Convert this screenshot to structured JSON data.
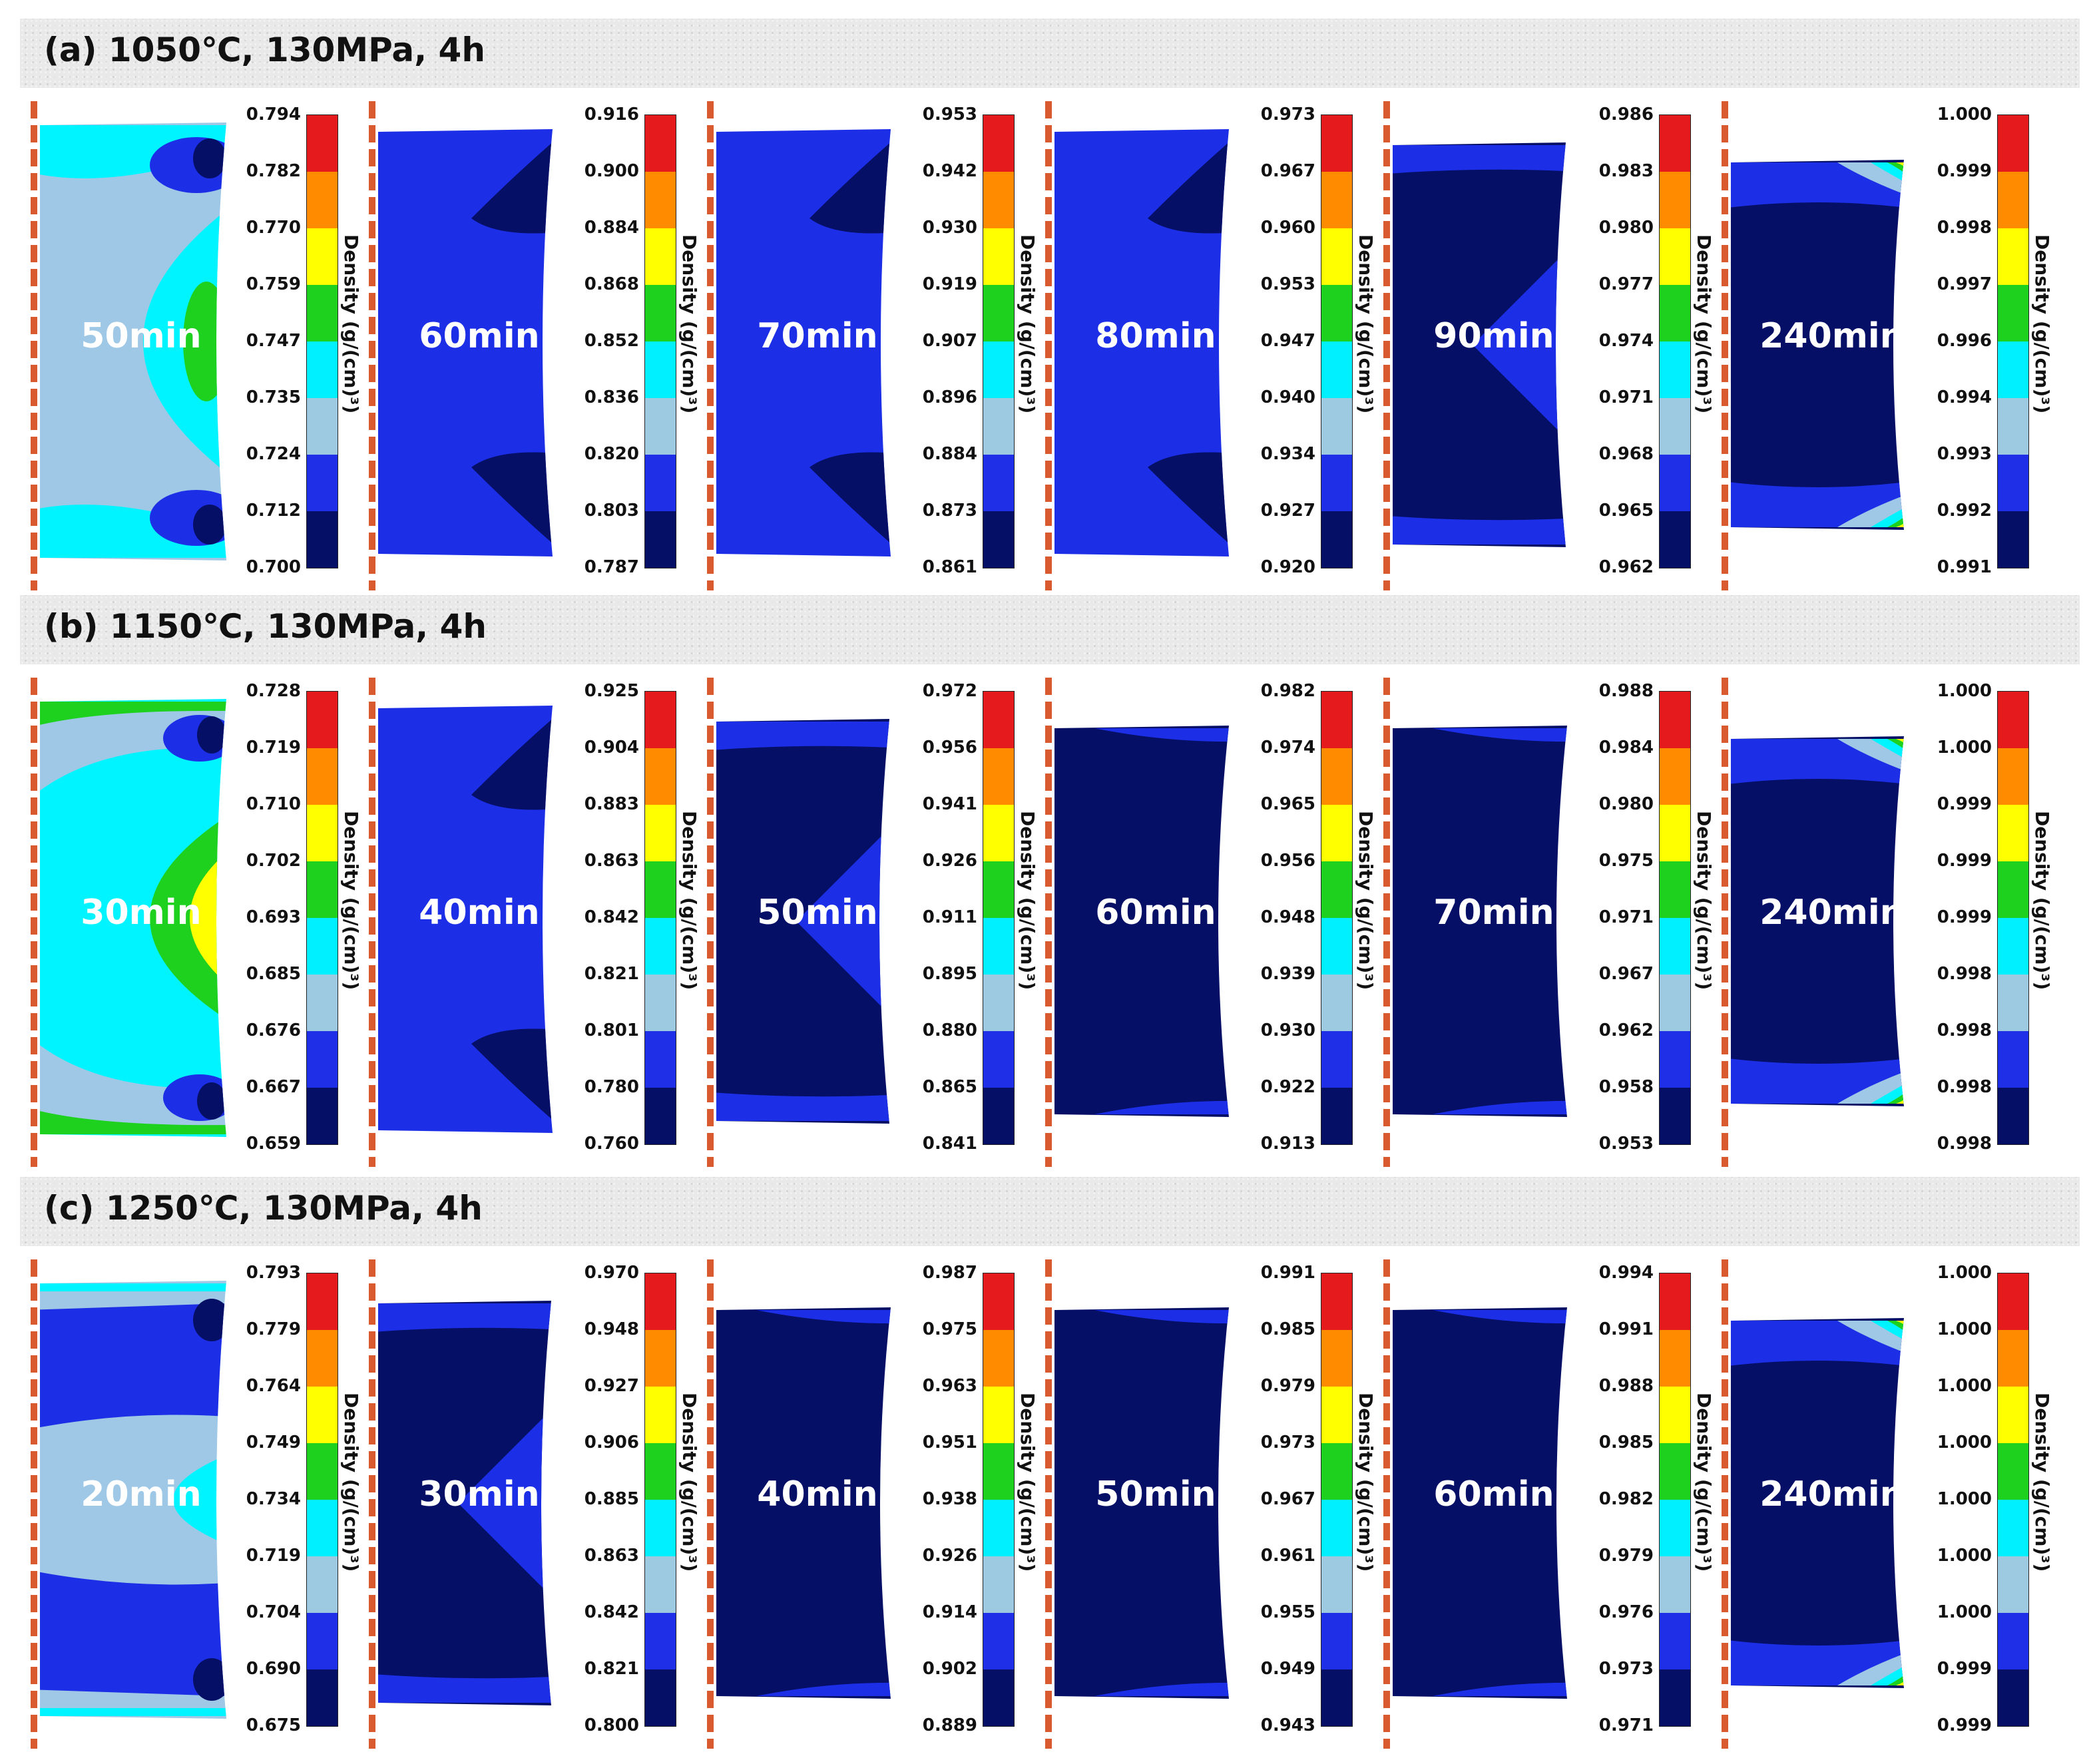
{
  "colorbar": {
    "colors": [
      "#e41a1c",
      "#ff8c00",
      "#ffff00",
      "#1fd11f",
      "#00f0ff",
      "#9ecae1",
      "#1f2fe8",
      "#050f66"
    ],
    "fill_colors": {
      "lightblue": "#9ec8e6",
      "cyan": "#00f4ff",
      "green": "#1fd11f",
      "yellow": "#ffff00",
      "blue": "#1c2ee6",
      "navy": "#050f66"
    },
    "label": "Density (g/(cm)³)"
  },
  "rows": [
    {
      "title": "(a) 1050℃, 130MPa, 4h",
      "panels": [
        {
          "time": "50min",
          "ticks": [
            "0.794",
            "0.782",
            "0.770",
            "0.759",
            "0.747",
            "0.735",
            "0.724",
            "0.712",
            "0.700"
          ],
          "style": "a"
        },
        {
          "time": "60min",
          "ticks": [
            "0.916",
            "0.900",
            "0.884",
            "0.868",
            "0.852",
            "0.836",
            "0.820",
            "0.803",
            "0.787"
          ],
          "style": "b"
        },
        {
          "time": "70min",
          "ticks": [
            "0.953",
            "0.942",
            "0.930",
            "0.919",
            "0.907",
            "0.896",
            "0.884",
            "0.873",
            "0.861"
          ],
          "style": "b"
        },
        {
          "time": "80min",
          "ticks": [
            "0.973",
            "0.967",
            "0.960",
            "0.953",
            "0.947",
            "0.940",
            "0.934",
            "0.927",
            "0.920"
          ],
          "style": "b"
        },
        {
          "time": "90min",
          "ticks": [
            "0.986",
            "0.983",
            "0.980",
            "0.977",
            "0.974",
            "0.971",
            "0.968",
            "0.965",
            "0.962"
          ],
          "style": "c"
        },
        {
          "time": "240min",
          "ticks": [
            "1.000",
            "0.999",
            "0.998",
            "0.997",
            "0.996",
            "0.994",
            "0.993",
            "0.992",
            "0.991"
          ],
          "style": "e"
        }
      ]
    },
    {
      "title": "(b) 1150℃, 130MPa, 4h",
      "panels": [
        {
          "time": "30min",
          "ticks": [
            "0.728",
            "0.719",
            "0.710",
            "0.702",
            "0.693",
            "0.685",
            "0.676",
            "0.667",
            "0.659"
          ],
          "style": "a2"
        },
        {
          "time": "40min",
          "ticks": [
            "0.925",
            "0.904",
            "0.883",
            "0.863",
            "0.842",
            "0.821",
            "0.801",
            "0.780",
            "0.760"
          ],
          "style": "b"
        },
        {
          "time": "50min",
          "ticks": [
            "0.972",
            "0.956",
            "0.941",
            "0.926",
            "0.911",
            "0.895",
            "0.880",
            "0.865",
            "0.841"
          ],
          "style": "c"
        },
        {
          "time": "60min",
          "ticks": [
            "0.982",
            "0.974",
            "0.965",
            "0.956",
            "0.948",
            "0.939",
            "0.930",
            "0.922",
            "0.913"
          ],
          "style": "d"
        },
        {
          "time": "70min",
          "ticks": [
            "0.988",
            "0.984",
            "0.980",
            "0.975",
            "0.971",
            "0.967",
            "0.962",
            "0.958",
            "0.953"
          ],
          "style": "d"
        },
        {
          "time": "240min",
          "ticks": [
            "1.000",
            "1.000",
            "0.999",
            "0.999",
            "0.999",
            "0.998",
            "0.998",
            "0.998",
            "0.998"
          ],
          "style": "e"
        }
      ]
    },
    {
      "title": "(c) 1250℃, 130MPa, 4h",
      "panels": [
        {
          "time": "20min",
          "ticks": [
            "0.793",
            "0.779",
            "0.764",
            "0.749",
            "0.734",
            "0.719",
            "0.704",
            "0.690",
            "0.675"
          ],
          "style": "a3"
        },
        {
          "time": "30min",
          "ticks": [
            "0.970",
            "0.948",
            "0.927",
            "0.906",
            "0.885",
            "0.863",
            "0.842",
            "0.821",
            "0.800"
          ],
          "style": "c"
        },
        {
          "time": "40min",
          "ticks": [
            "0.987",
            "0.975",
            "0.963",
            "0.951",
            "0.938",
            "0.926",
            "0.914",
            "0.902",
            "0.889"
          ],
          "style": "d"
        },
        {
          "time": "50min",
          "ticks": [
            "0.991",
            "0.985",
            "0.979",
            "0.973",
            "0.967",
            "0.961",
            "0.955",
            "0.949",
            "0.943"
          ],
          "style": "d"
        },
        {
          "time": "60min",
          "ticks": [
            "0.994",
            "0.991",
            "0.988",
            "0.985",
            "0.982",
            "0.979",
            "0.976",
            "0.973",
            "0.971"
          ],
          "style": "d"
        },
        {
          "time": "240min",
          "ticks": [
            "1.000",
            "1.000",
            "1.000",
            "1.000",
            "1.000",
            "1.000",
            "1.000",
            "0.999",
            "0.999"
          ],
          "style": "e"
        }
      ]
    }
  ]
}
